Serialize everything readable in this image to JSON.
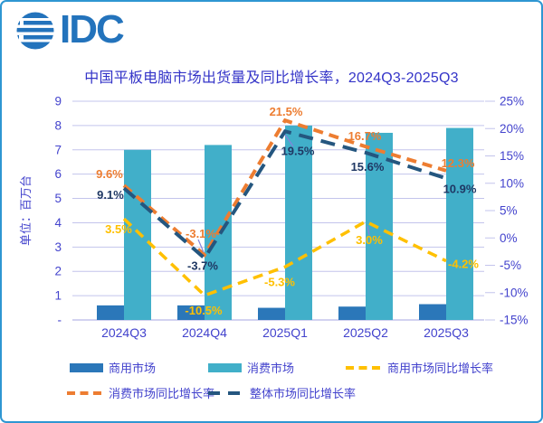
{
  "logo": {
    "text": "IDC"
  },
  "chart_data": {
    "type": "combo_bar_line",
    "title": "中国平板电脑市场出货量及同比增长率，2024Q3-2025Q3",
    "categories": [
      "2024Q3",
      "2024Q4",
      "2025Q1",
      "2025Q2",
      "2025Q3"
    ],
    "bar_series": [
      {
        "name": "商用市场",
        "color": "#2b77b9",
        "values": [
          0.6,
          0.6,
          0.5,
          0.55,
          0.65
        ]
      },
      {
        "name": "消费市场",
        "color": "#41afc9",
        "values": [
          7.0,
          7.2,
          8.0,
          7.7,
          7.9
        ]
      }
    ],
    "line_series": [
      {
        "name": "商用市场同比增长率",
        "color": "#ffc000",
        "label_color": "#ffc000",
        "dash": "11 7",
        "width": 3.5,
        "values_pct": [
          3.5,
          -10.5,
          -5.3,
          3.0,
          -4.2
        ],
        "point_labels": [
          "3.5%",
          "-10.5%",
          "-5.3%",
          "3.0%",
          "-4.2%"
        ]
      },
      {
        "name": "消费市场同比增长率",
        "color": "#ed7d31",
        "label_color": "#ed7d31",
        "dash": "11 7",
        "width": 4,
        "values_pct": [
          9.6,
          -3.1,
          21.5,
          16.7,
          12.3
        ],
        "point_labels": [
          "9.6%",
          "-3.1%",
          "21.5%",
          "16.7%",
          "12.3%"
        ]
      },
      {
        "name": "整体市场同比增长率",
        "color": "#24567f",
        "label_color": "#1f3864",
        "dash": "16 9",
        "width": 4,
        "values_pct": [
          9.1,
          -3.7,
          19.5,
          15.6,
          10.9
        ],
        "point_labels": [
          "9.1%",
          "-3.7%",
          "19.5%",
          "15.6%",
          "10.9%"
        ]
      }
    ],
    "left_axis": {
      "title": "单位：百万台",
      "min": 0,
      "max": 9,
      "ticks": [
        "9",
        "8",
        "7",
        "6",
        "5",
        "4",
        "3",
        "2",
        "1",
        "-"
      ]
    },
    "right_axis": {
      "min": -15,
      "max": 25,
      "step": 5,
      "ticks": [
        "25%",
        "20%",
        "15%",
        "10%",
        "5%",
        "0%",
        "-5%",
        "-10%",
        "-15%"
      ]
    },
    "legend": [
      {
        "label": "商用市场",
        "marker": "bar",
        "color": "#2b77b9"
      },
      {
        "label": "消费市场",
        "marker": "bar",
        "color": "#41afc9"
      },
      {
        "label": "商用市场同比增长率",
        "marker": "dash",
        "color": "#ffc000"
      },
      {
        "label": "消费市场同比增长率",
        "marker": "dash",
        "color": "#ed7d31"
      },
      {
        "label": "整体市场同比增长率",
        "marker": "dash-long",
        "color": "#24567f"
      }
    ],
    "layout_hints": {
      "grid": "horizontal, left-axis integer steps",
      "legend_position": "bottom, two wrapped rows",
      "axis_text_color": "#4343cd",
      "grid_color": "#c3c4ec",
      "border_color": "#2e96d2"
    }
  }
}
